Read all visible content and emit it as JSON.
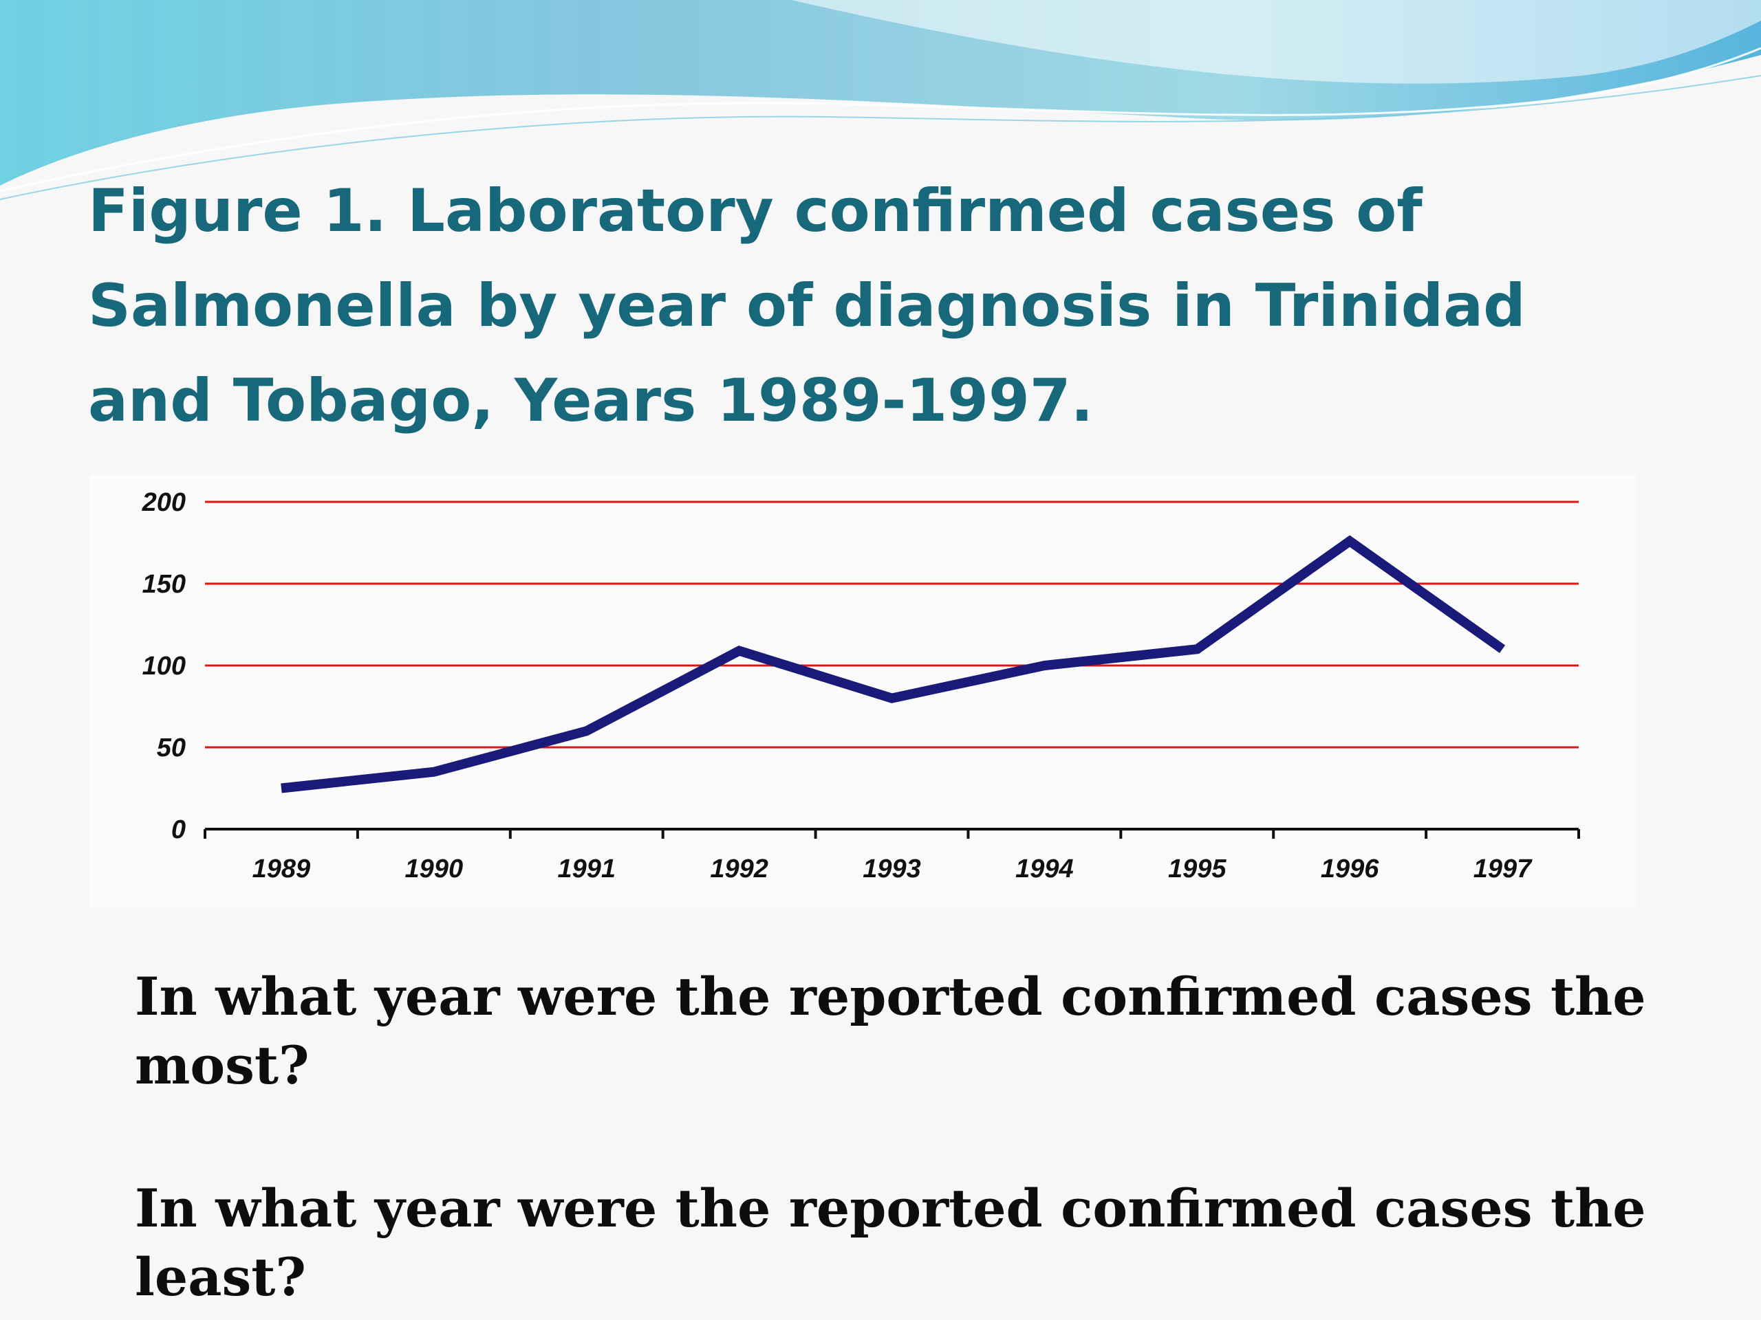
{
  "slide": {
    "title": "Figure 1. Laboratory confirmed cases of Salmonella by year of diagnosis in Trinidad and Tobago, Years 1989-1997.",
    "questions": [
      "In what year were the reported confirmed cases the most?",
      "In what year were the reported confirmed cases the least?"
    ]
  },
  "colors": {
    "title": "#17687a",
    "line": "#1a1a7a",
    "gridlines": "#e01515",
    "axis": "#111111"
  },
  "chart_data": {
    "type": "line",
    "title": "",
    "xlabel": "",
    "ylabel": "",
    "categories": [
      "1989",
      "1990",
      "1991",
      "1992",
      "1993",
      "1994",
      "1995",
      "1996",
      "1997"
    ],
    "series": [
      {
        "values": [
          25,
          35,
          60,
          109,
          80,
          100,
          110,
          176,
          110
        ]
      }
    ],
    "yticks": [
      0,
      50,
      100,
      150,
      200
    ],
    "ylim": [
      0,
      200
    ],
    "grid": true,
    "legend": "none"
  }
}
